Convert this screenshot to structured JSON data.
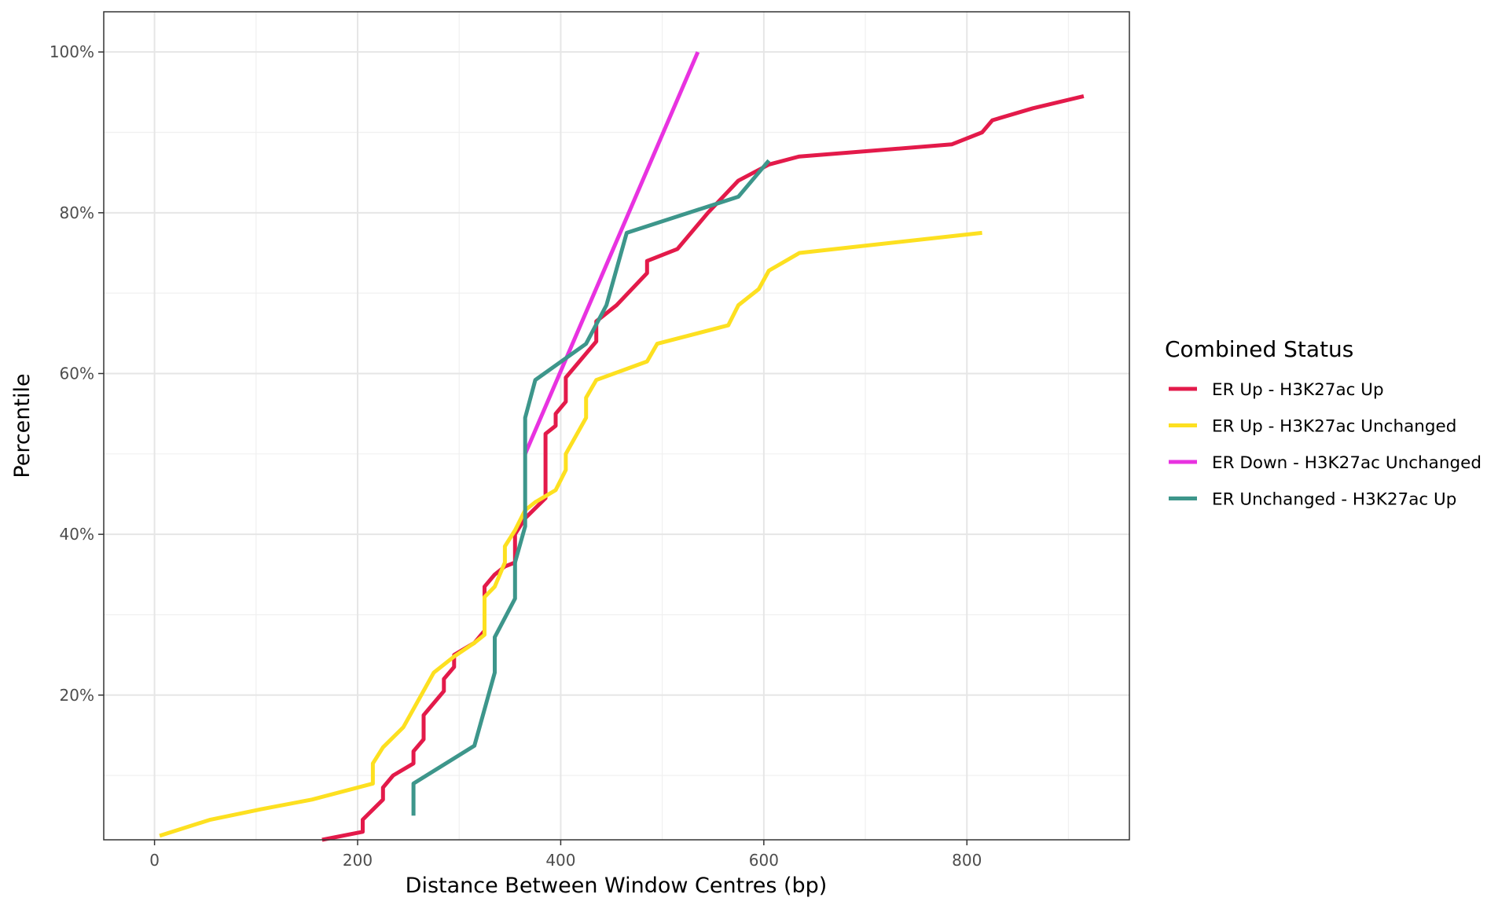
{
  "chart_data": {
    "type": "line",
    "title": "",
    "xlabel": "Distance Between Window Centres (bp)",
    "ylabel": "Percentile",
    "xlim": [
      -50,
      960
    ],
    "ylim": [
      0.02,
      1.05
    ],
    "x_ticks": [
      0,
      200,
      400,
      600,
      800
    ],
    "x_tick_labels": [
      "0",
      "200",
      "400",
      "600",
      "800"
    ],
    "x_minor_ticks": [
      100,
      300,
      500,
      700,
      900
    ],
    "y_ticks": [
      0.2,
      0.4,
      0.6,
      0.8,
      1.0
    ],
    "y_tick_labels": [
      "20%",
      "40%",
      "60%",
      "80%",
      "100%"
    ],
    "y_minor_ticks": [
      0.1,
      0.3,
      0.5,
      0.7,
      0.9
    ],
    "grid": true,
    "legend": {
      "title": "Combined Status",
      "position": "right"
    },
    "series": [
      {
        "name": "ER Up - H3K27ac Up",
        "color": "#e31a4a",
        "points": [
          [
            165,
            0.02
          ],
          [
            205,
            0.03
          ],
          [
            205,
            0.045
          ],
          [
            225,
            0.07
          ],
          [
            225,
            0.085
          ],
          [
            235,
            0.1
          ],
          [
            255,
            0.115
          ],
          [
            255,
            0.13
          ],
          [
            265,
            0.145
          ],
          [
            265,
            0.175
          ],
          [
            285,
            0.205
          ],
          [
            285,
            0.22
          ],
          [
            295,
            0.235
          ],
          [
            295,
            0.25
          ],
          [
            315,
            0.265
          ],
          [
            325,
            0.28
          ],
          [
            325,
            0.335
          ],
          [
            335,
            0.35
          ],
          [
            345,
            0.36
          ],
          [
            355,
            0.365
          ],
          [
            355,
            0.4
          ],
          [
            365,
            0.42
          ],
          [
            385,
            0.445
          ],
          [
            385,
            0.525
          ],
          [
            395,
            0.535
          ],
          [
            395,
            0.55
          ],
          [
            405,
            0.565
          ],
          [
            405,
            0.595
          ],
          [
            435,
            0.64
          ],
          [
            435,
            0.665
          ],
          [
            455,
            0.685
          ],
          [
            485,
            0.725
          ],
          [
            485,
            0.74
          ],
          [
            515,
            0.755
          ],
          [
            545,
            0.8
          ],
          [
            575,
            0.84
          ],
          [
            605,
            0.86
          ],
          [
            635,
            0.87
          ],
          [
            785,
            0.885
          ],
          [
            815,
            0.9
          ],
          [
            825,
            0.915
          ],
          [
            865,
            0.93
          ],
          [
            915,
            0.945
          ]
        ]
      },
      {
        "name": "ER Up - H3K27ac Unchanged",
        "color": "#fde020",
        "points": [
          [
            5,
            0.025
          ],
          [
            55,
            0.045
          ],
          [
            105,
            0.058
          ],
          [
            155,
            0.07
          ],
          [
            215,
            0.09
          ],
          [
            215,
            0.115
          ],
          [
            225,
            0.135
          ],
          [
            245,
            0.16
          ],
          [
            275,
            0.228
          ],
          [
            295,
            0.248
          ],
          [
            315,
            0.265
          ],
          [
            325,
            0.275
          ],
          [
            325,
            0.322
          ],
          [
            335,
            0.335
          ],
          [
            345,
            0.365
          ],
          [
            345,
            0.385
          ],
          [
            355,
            0.405
          ],
          [
            365,
            0.43
          ],
          [
            375,
            0.44
          ],
          [
            395,
            0.455
          ],
          [
            405,
            0.48
          ],
          [
            405,
            0.5
          ],
          [
            425,
            0.545
          ],
          [
            425,
            0.57
          ],
          [
            435,
            0.592
          ],
          [
            485,
            0.615
          ],
          [
            495,
            0.637
          ],
          [
            565,
            0.66
          ],
          [
            575,
            0.685
          ],
          [
            595,
            0.705
          ],
          [
            605,
            0.728
          ],
          [
            635,
            0.75
          ],
          [
            815,
            0.775
          ]
        ]
      },
      {
        "name": "ER Down - H3K27ac Unchanged",
        "color": "#e832e0",
        "points": [
          [
            365,
            0.5
          ],
          [
            535,
            1.0
          ]
        ]
      },
      {
        "name": "ER Unchanged - H3K27ac Up",
        "color": "#3d968b",
        "points": [
          [
            255,
            0.05
          ],
          [
            255,
            0.09
          ],
          [
            315,
            0.137
          ],
          [
            335,
            0.228
          ],
          [
            335,
            0.272
          ],
          [
            355,
            0.32
          ],
          [
            355,
            0.365
          ],
          [
            365,
            0.41
          ],
          [
            365,
            0.545
          ],
          [
            375,
            0.592
          ],
          [
            425,
            0.637
          ],
          [
            445,
            0.685
          ],
          [
            465,
            0.775
          ],
          [
            575,
            0.82
          ],
          [
            605,
            0.865
          ]
        ]
      }
    ]
  }
}
